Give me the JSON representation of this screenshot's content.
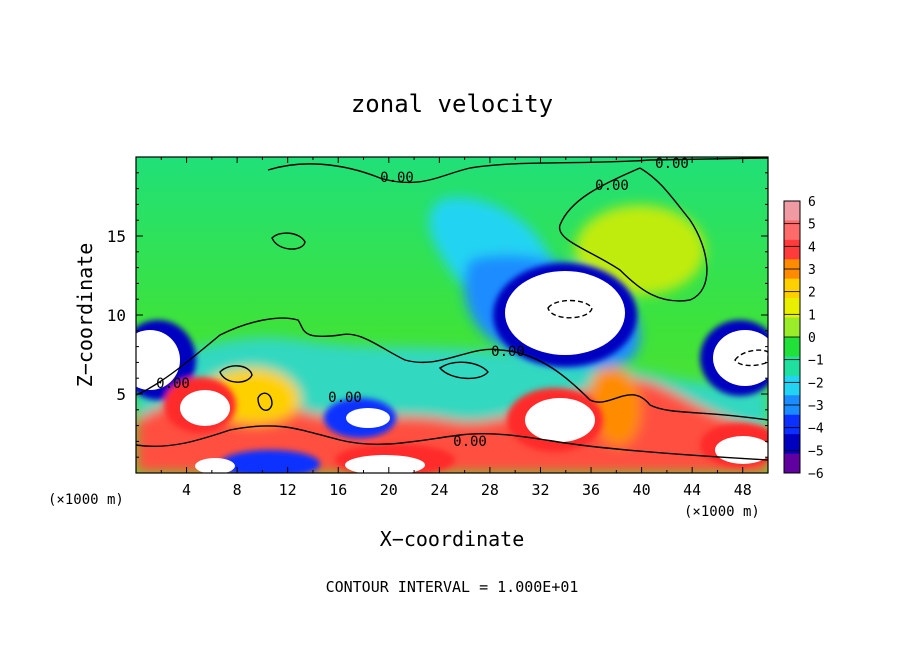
{
  "chart_data": {
    "type": "heatmap",
    "title": "zonal velocity",
    "xlabel": "X−coordinate",
    "ylabel": "Z−coordinate",
    "x_unit_left": "(×1000 m)",
    "x_unit_right": "(×1000 m)",
    "xlim": [
      0,
      50
    ],
    "ylim": [
      0,
      20
    ],
    "xticks": [
      4,
      8,
      12,
      16,
      20,
      24,
      28,
      32,
      36,
      40,
      44,
      48
    ],
    "yticks": [
      5,
      10,
      15
    ],
    "colorbar": {
      "min": -6,
      "max": 6,
      "ticks": [
        6,
        5,
        4,
        3,
        2,
        1,
        0,
        -1,
        -2,
        -3,
        -4,
        -5,
        -6
      ],
      "tick_labels": [
        "6",
        "5",
        "4",
        "3",
        "2",
        "1",
        "0",
        "−1",
        "−2",
        "−3",
        "−4",
        "−5",
        "−6"
      ],
      "colors": [
        "#f09aa4",
        "#ff6b6b",
        "#ff3b3b",
        "#ff8c00",
        "#ffd000",
        "#e8f000",
        "#9aeb2a",
        "#22e03a",
        "#20e0a0",
        "#22d4f2",
        "#1a8cff",
        "#0b30ff",
        "#0000c0",
        "#6000a0"
      ]
    },
    "contour_labels": [
      "0.00",
      "0.00",
      "0.00",
      "0.00",
      "0.00",
      "0.00",
      "0.00"
    ],
    "annotation": "CONTOUR INTERVAL = 1.000E+01"
  }
}
